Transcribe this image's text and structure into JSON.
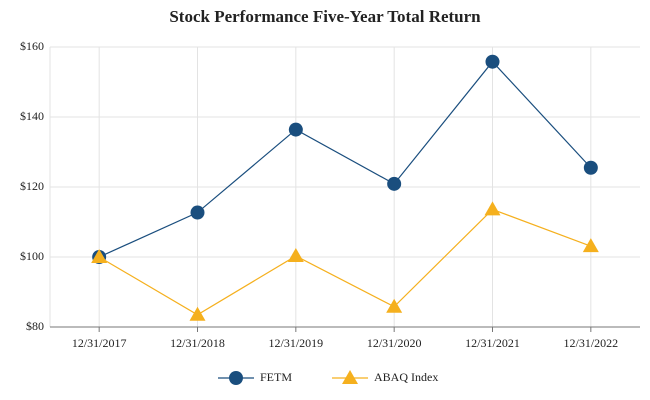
{
  "chart_data": {
    "type": "line",
    "title": "Stock Performance Five-Year Total Return",
    "categories": [
      "12/31/2017",
      "12/31/2018",
      "12/31/2019",
      "12/31/2020",
      "12/31/2021",
      "12/31/2022"
    ],
    "series": [
      {
        "name": "FETM",
        "color": "#1a4e7e",
        "marker": "circle",
        "values": [
          100,
          112.7,
          136.4,
          120.9,
          155.8,
          125.5
        ]
      },
      {
        "name": "ABAQ Index",
        "color": "#f5b01e",
        "marker": "triangle",
        "values": [
          100,
          83.5,
          100.3,
          85.8,
          113.6,
          103.1
        ]
      }
    ],
    "ylim": [
      80,
      160
    ],
    "yticks": [
      {
        "value": 80,
        "label": "$80"
      },
      {
        "value": 100,
        "label": "$100"
      },
      {
        "value": 120,
        "label": "$120"
      },
      {
        "value": 140,
        "label": "$140"
      },
      {
        "value": 160,
        "label": "$160"
      }
    ],
    "grid": true,
    "legend": "bottom"
  }
}
